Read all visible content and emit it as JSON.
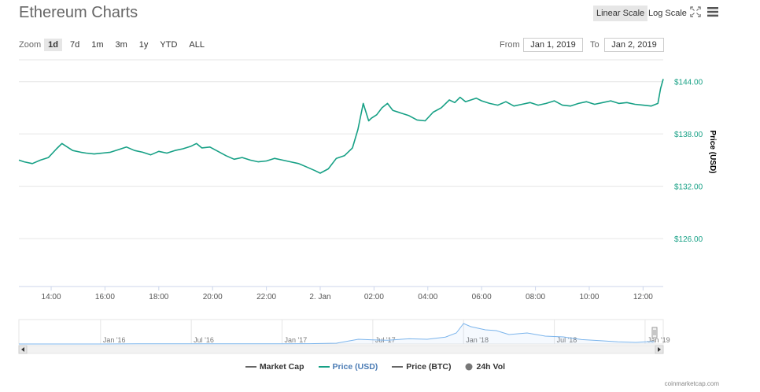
{
  "header": {
    "title": "Ethereum Charts",
    "linear_scale": "Linear Scale",
    "log_scale": "Log Scale"
  },
  "zoom": {
    "label": "Zoom",
    "buttons": [
      "1d",
      "7d",
      "1m",
      "3m",
      "1y",
      "YTD",
      "ALL"
    ],
    "active": "1d"
  },
  "range": {
    "from_label": "From",
    "from_value": "Jan 1, 2019",
    "to_label": "To",
    "to_value": "Jan 2, 2019"
  },
  "legend": {
    "items": [
      {
        "label": "Market Cap",
        "color": "#666666",
        "symbol": "line"
      },
      {
        "label": "Price (USD)",
        "color": "#16a085",
        "symbol": "line"
      },
      {
        "label": "Price (BTC)",
        "color": "#666666",
        "symbol": "line"
      },
      {
        "label": "24h Vol",
        "color": "#777777",
        "symbol": "dot"
      }
    ]
  },
  "credit": "coinmarketcap.com",
  "colors": {
    "price_line": "#16a085",
    "navigator_line": "#7cb5ec",
    "axis_label_green": "#16a085"
  },
  "chart_data": {
    "type": "line",
    "y_axis_title": "Price (USD)",
    "y_tick_labels": [
      "$144.00",
      "$138.00",
      "$132.00",
      "$126.00"
    ],
    "y_ticks": [
      144,
      138,
      132,
      126
    ],
    "ylim": [
      120.5,
      146.5
    ],
    "x_tick_labels": [
      "14:00",
      "16:00",
      "18:00",
      "20:00",
      "22:00",
      "2. Jan",
      "02:00",
      "04:00",
      "06:00",
      "08:00",
      "10:00",
      "12:00"
    ],
    "x_ticks": [
      14,
      16,
      18,
      20,
      22,
      24,
      26,
      28,
      30,
      32,
      34,
      36
    ],
    "xlim": [
      12.8,
      36.75
    ],
    "grid": true,
    "series": [
      {
        "name": "Price (USD)",
        "x": [
          12.8,
          13.0,
          13.3,
          13.6,
          13.9,
          14.2,
          14.4,
          14.6,
          14.8,
          15.1,
          15.3,
          15.6,
          15.9,
          16.2,
          16.5,
          16.8,
          17.1,
          17.4,
          17.7,
          18.0,
          18.3,
          18.6,
          18.9,
          19.2,
          19.4,
          19.6,
          19.9,
          20.2,
          20.5,
          20.8,
          21.1,
          21.4,
          21.7,
          22.0,
          22.3,
          22.6,
          22.9,
          23.2,
          23.5,
          23.8,
          24.0,
          24.3,
          24.6,
          24.9,
          25.2,
          25.4,
          25.6,
          25.8,
          25.9,
          26.1,
          26.3,
          26.5,
          26.7,
          27.0,
          27.3,
          27.6,
          27.9,
          28.2,
          28.5,
          28.8,
          29.0,
          29.2,
          29.4,
          29.6,
          29.8,
          30.0,
          30.3,
          30.6,
          30.9,
          31.2,
          31.5,
          31.8,
          32.1,
          32.4,
          32.7,
          33.0,
          33.3,
          33.6,
          33.9,
          34.2,
          34.5,
          34.8,
          35.1,
          35.4,
          35.7,
          36.0,
          36.3,
          36.55,
          36.65,
          36.75
        ],
        "y": [
          135.0,
          134.8,
          134.6,
          135.0,
          135.3,
          136.3,
          136.9,
          136.5,
          136.1,
          135.9,
          135.8,
          135.7,
          135.8,
          135.9,
          136.2,
          136.5,
          136.1,
          135.9,
          135.6,
          136.0,
          135.8,
          136.1,
          136.3,
          136.6,
          136.9,
          136.4,
          136.5,
          136.0,
          135.5,
          135.1,
          135.3,
          135.0,
          134.8,
          134.9,
          135.2,
          135.0,
          134.8,
          134.6,
          134.2,
          133.8,
          133.5,
          134.0,
          135.2,
          135.5,
          136.4,
          138.5,
          141.5,
          139.5,
          139.8,
          140.2,
          141.0,
          141.5,
          140.7,
          140.4,
          140.1,
          139.6,
          139.5,
          140.5,
          141.0,
          141.9,
          141.6,
          142.2,
          141.7,
          141.9,
          142.1,
          141.8,
          141.5,
          141.3,
          141.7,
          141.2,
          141.4,
          141.6,
          141.3,
          141.5,
          141.8,
          141.3,
          141.2,
          141.5,
          141.7,
          141.4,
          141.6,
          141.8,
          141.5,
          141.6,
          141.4,
          141.3,
          141.2,
          141.5,
          143.2,
          144.3
        ]
      }
    ],
    "navigator": {
      "x_tick_labels": [
        "Jan '16",
        "Jul '16",
        "Jan '17",
        "Jul '17",
        "Jan '18",
        "Jul '18",
        "Jan '19"
      ],
      "x_ticks": [
        2016.0,
        2016.5,
        2017.0,
        2017.5,
        2018.0,
        2018.5,
        2019.0
      ],
      "xlim": [
        2015.55,
        2019.1
      ],
      "ylim": [
        0,
        1450
      ],
      "x": [
        2015.55,
        2015.8,
        2016.0,
        2016.2,
        2016.4,
        2016.6,
        2016.8,
        2017.0,
        2017.15,
        2017.3,
        2017.42,
        2017.5,
        2017.58,
        2017.7,
        2017.8,
        2017.9,
        2017.96,
        2018.0,
        2018.04,
        2018.08,
        2018.12,
        2018.18,
        2018.25,
        2018.35,
        2018.45,
        2018.55,
        2018.65,
        2018.75,
        2018.85,
        2018.95,
        2019.0,
        2019.05
      ],
      "y": [
        1,
        1,
        1,
        10,
        15,
        12,
        10,
        8,
        20,
        50,
        300,
        260,
        240,
        330,
        300,
        440,
        700,
        1300,
        1100,
        1000,
        900,
        850,
        600,
        700,
        500,
        450,
        280,
        210,
        140,
        100,
        140,
        150
      ]
    }
  }
}
